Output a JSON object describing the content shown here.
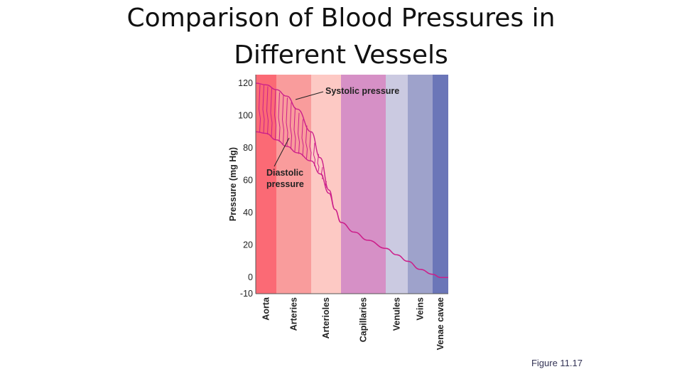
{
  "slide": {
    "title_line1": "Comparison of Blood Pressures in",
    "title_line2": "Different Vessels",
    "figure_caption": "Figure 11.17"
  },
  "chart_data": {
    "type": "area",
    "ylabel": "Pressure (mg Hg)",
    "ylim": [
      -10,
      120
    ],
    "y_ticks": [
      120,
      100,
      80,
      60,
      40,
      20,
      0,
      -10
    ],
    "regions": [
      {
        "name": "Aorta",
        "color": "#fb6a75"
      },
      {
        "name": "Arteries",
        "color": "#f99c9c"
      },
      {
        "name": "Arterioles",
        "color": "#fdc9c4"
      },
      {
        "name": "Capillaries",
        "color": "#d690c6"
      },
      {
        "name": "Venules",
        "color": "#cbcae1"
      },
      {
        "name": "Veins",
        "color": "#9ea2cb"
      },
      {
        "name": "Venae cavae",
        "color": "#6b76b8"
      }
    ],
    "series": [
      {
        "name": "Systolic pressure",
        "x": [
          0,
          0.5,
          1.0,
          1.3,
          1.6,
          2.0,
          2.3,
          2.6,
          2.8,
          3.0,
          3.3,
          3.6,
          4.0,
          4.5,
          5.0,
          5.5,
          6.0,
          6.5,
          7.0
        ],
        "y": [
          120,
          119,
          116,
          112,
          104,
          90,
          74,
          54,
          42,
          34,
          28,
          23,
          18,
          14,
          10,
          5,
          2,
          0,
          0
        ]
      },
      {
        "name": "Diastolic pressure",
        "x": [
          0,
          0.5,
          1.0,
          1.3,
          1.6,
          2.0,
          2.3,
          2.6,
          2.8,
          3.0,
          3.3,
          3.6,
          4.0,
          4.5,
          5.0,
          5.5,
          6.0,
          6.5,
          7.0
        ],
        "y": [
          90,
          89,
          85,
          81,
          77,
          72,
          64,
          52,
          42,
          34,
          28,
          23,
          18,
          14,
          10,
          5,
          2,
          0,
          0
        ]
      }
    ],
    "annotations": [
      {
        "text": "Systolic pressure",
        "lines": [
          "Systolic pressure"
        ]
      },
      {
        "text": "Diastolic pressure",
        "lines": [
          "Diastolic",
          "pressure"
        ]
      }
    ],
    "colors": {
      "curve": "#cc1f8a"
    },
    "grid": false
  }
}
